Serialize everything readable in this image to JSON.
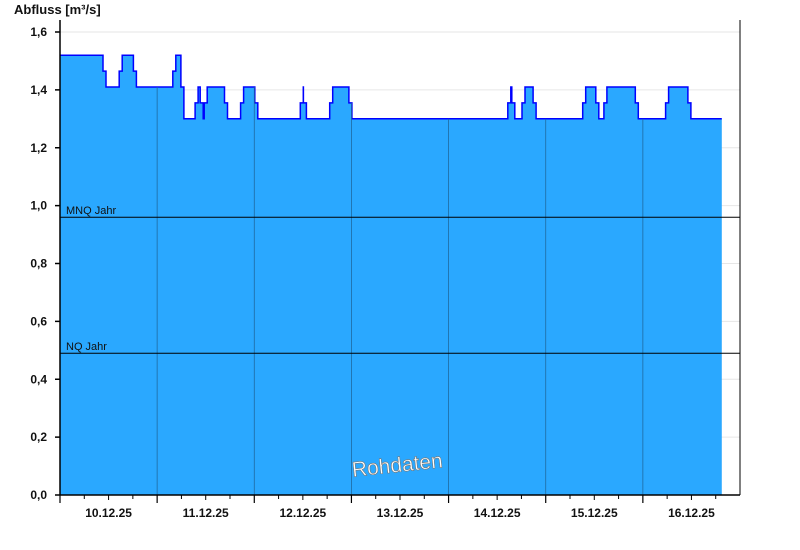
{
  "chart_data": {
    "type": "area",
    "ylabel": "Abfluss [m³/s]",
    "ylim": [
      0,
      1.6
    ],
    "yticks": [
      "0,0",
      "0,2",
      "0,4",
      "0,6",
      "0,8",
      "1,0",
      "1,2",
      "1,4",
      "1,6"
    ],
    "xlim": [
      "2025-12-10T00:00",
      "2025-12-17T00:00"
    ],
    "xticks": [
      "10.12.25",
      "11.12.25",
      "12.12.25",
      "13.12.25",
      "14.12.25",
      "15.12.25",
      "16.12.25"
    ],
    "grid": true,
    "fill_color": "#2aa8ff",
    "line_color": "#0000ff",
    "reference_lines": [
      {
        "label": "MNQ Jahr",
        "value": 0.96
      },
      {
        "label": "NQ Jahr",
        "value": 0.49
      }
    ],
    "watermark": "Rohdaten",
    "series": [
      {
        "steps": [
          [
            "2025-12-10T00:00",
            1.52
          ],
          [
            "2025-12-10T11:00",
            1.41
          ],
          [
            "2025-12-10T15:00",
            1.52
          ],
          [
            "2025-12-10T18:30",
            1.41
          ],
          [
            "2025-12-11T04:15",
            1.52
          ],
          [
            "2025-12-11T06:15",
            1.3
          ],
          [
            "2025-12-11T09:45",
            1.41
          ],
          [
            "2025-12-11T11:00",
            1.3
          ],
          [
            "2025-12-11T12:00",
            1.41
          ],
          [
            "2025-12-11T17:00",
            1.3
          ],
          [
            "2025-12-11T21:00",
            1.41
          ],
          [
            "2025-12-12T00:30",
            1.3
          ],
          [
            "2025-12-12T11:45",
            1.41
          ],
          [
            "2025-12-12T12:30",
            1.3
          ],
          [
            "2025-12-12T19:00",
            1.41
          ],
          [
            "2025-12-12T23:45",
            1.3
          ],
          [
            "2025-12-14T15:00",
            1.41
          ],
          [
            "2025-12-14T16:00",
            1.3
          ],
          [
            "2025-12-14T18:30",
            1.41
          ],
          [
            "2025-12-14T21:15",
            1.3
          ],
          [
            "2025-12-15T09:30",
            1.41
          ],
          [
            "2025-12-15T12:45",
            1.3
          ],
          [
            "2025-12-15T14:45",
            1.41
          ],
          [
            "2025-12-15T22:30",
            1.3
          ],
          [
            "2025-12-16T06:00",
            1.41
          ],
          [
            "2025-12-16T11:30",
            1.3
          ]
        ],
        "end": "2025-12-16T19:30"
      }
    ]
  }
}
